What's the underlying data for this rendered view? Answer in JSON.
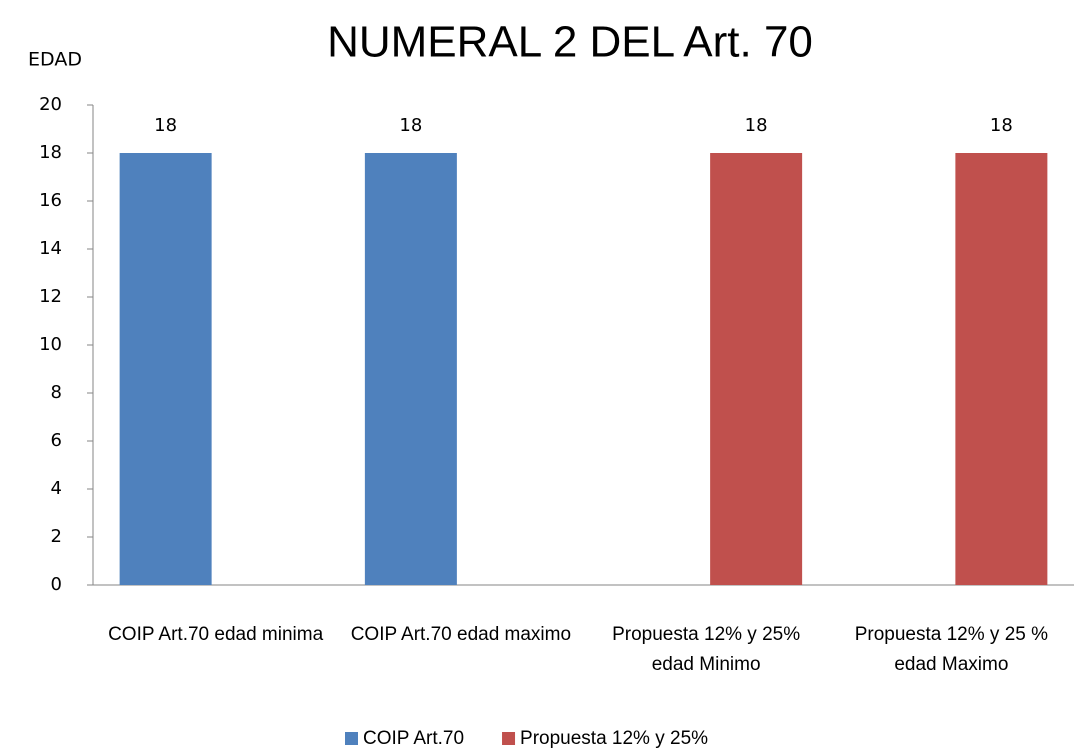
{
  "chart_data": {
    "type": "bar",
    "title": "NUMERAL 2 DEL Art. 70",
    "y_label": "EDAD",
    "categories": [
      "COIP Art.70 edad minima",
      "COIP Art.70 edad maximo",
      "Propuesta 12% y 25% edad Minimo",
      "Propuesta 12% y 25 % edad Maximo"
    ],
    "series": [
      {
        "name": "COIP Art.70",
        "color": "#4f81bd",
        "values": [
          18,
          18,
          null,
          null
        ]
      },
      {
        "name": "Propuesta 12% y 25%",
        "color": "#c0504d",
        "values": [
          null,
          null,
          18,
          18
        ]
      }
    ],
    "ylim": [
      0,
      20
    ],
    "yticks": [
      0,
      2,
      4,
      6,
      8,
      10,
      12,
      14,
      16,
      18,
      20
    ],
    "grid": false,
    "legend": "bottom",
    "data_labels": true
  }
}
